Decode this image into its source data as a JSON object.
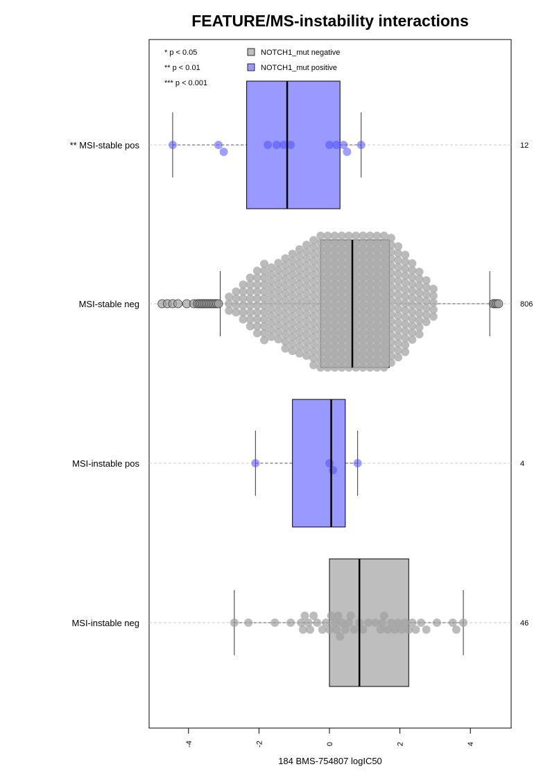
{
  "chart_data": {
    "type": "box",
    "title": "FEATURE/MS-instability interactions",
    "xlabel": "184 BMS-754807 logIC50",
    "xlim": [
      -5.2,
      5.1
    ],
    "xticks": [
      -4,
      -2,
      0,
      2,
      4
    ],
    "orientation": "horizontal",
    "significance_legend": [
      "* p < 0.05",
      "** p < 0.01",
      "*** p < 0.001"
    ],
    "legend": [
      {
        "label": "NOTCH1_mut negative",
        "color": "#bebebe"
      },
      {
        "label": "NOTCH1_mut positive",
        "color": "#9999ff"
      }
    ],
    "groups": [
      {
        "label": "** MSI-stable pos",
        "n": "12",
        "status": "positive",
        "whisker_low": -4.45,
        "q1": -2.35,
        "median": -1.2,
        "q3": 0.3,
        "whisker_high": 0.9,
        "points": [
          -4.45,
          -3.15,
          -3.0,
          -1.75,
          -1.5,
          -1.3,
          -1.1,
          0.0,
          0.2,
          0.4,
          0.5,
          0.9
        ]
      },
      {
        "label": "MSI-stable neg",
        "n": "806",
        "status": "negative",
        "whisker_low": -3.1,
        "q1": -0.25,
        "median": 0.65,
        "q3": 1.7,
        "whisker_high": 4.55,
        "outliers_low": [
          -4.75,
          -4.6,
          -4.45,
          -4.3,
          -4.05,
          -3.85,
          -3.75,
          -3.7,
          -3.65,
          -3.6,
          -3.55,
          -3.5,
          -3.45,
          -3.4,
          -3.35,
          -3.3,
          -3.25,
          -3.2,
          -3.15
        ],
        "outliers_high": [
          4.65,
          4.7,
          4.75,
          4.8
        ]
      },
      {
        "label": "MSI-instable pos",
        "n": "4",
        "status": "positive",
        "whisker_low": -2.1,
        "q1": -1.05,
        "median": 0.05,
        "q3": 0.45,
        "whisker_high": 0.8,
        "points": [
          -2.1,
          0.0,
          0.1,
          0.8
        ]
      },
      {
        "label": "MSI-instable neg",
        "n": "46",
        "status": "negative",
        "whisker_low": -2.7,
        "q1": 0.0,
        "median": 0.85,
        "q3": 2.25,
        "whisker_high": 3.8,
        "points": [
          -2.7,
          -2.3,
          -1.55,
          -1.1,
          -0.8,
          -0.75,
          -0.7,
          -0.6,
          -0.55,
          -0.45,
          -0.35,
          -0.2,
          -0.1,
          0.0,
          0.05,
          0.15,
          0.2,
          0.25,
          0.3,
          0.35,
          0.45,
          0.55,
          0.6,
          0.7,
          0.85,
          0.95,
          1.1,
          1.3,
          1.45,
          1.5,
          1.55,
          1.65,
          1.75,
          1.85,
          1.95,
          2.05,
          2.15,
          2.25,
          2.35,
          2.45,
          2.6,
          2.75,
          3.05,
          3.5,
          3.6,
          3.8
        ]
      }
    ]
  }
}
